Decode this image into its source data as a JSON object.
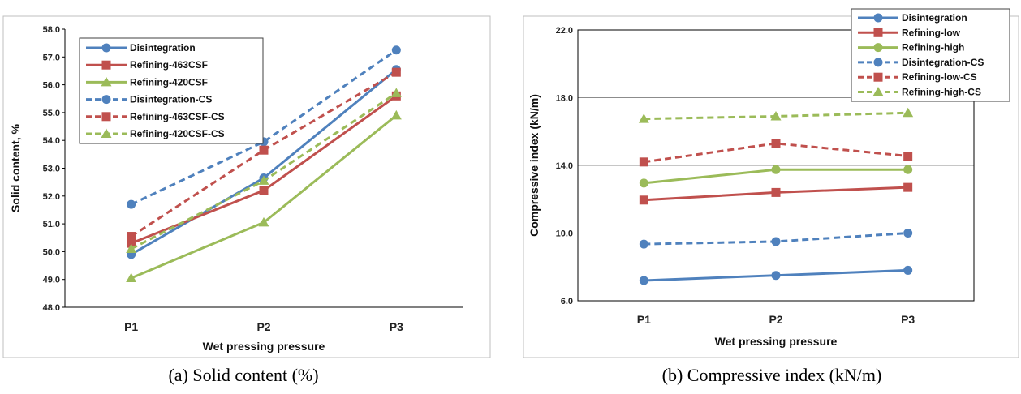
{
  "chart_data": [
    {
      "type": "line",
      "title": "",
      "caption": "(a) Solid content (%)",
      "xlabel": "Wet pressing pressure",
      "ylabel": "Solid content, %",
      "categories": [
        "P1",
        "P2",
        "P3"
      ],
      "ylim": [
        48.0,
        58.0
      ],
      "yticks": [
        "48.0",
        "49.0",
        "50.0",
        "51.0",
        "52.0",
        "53.0",
        "54.0",
        "55.0",
        "56.0",
        "57.0",
        "58.0"
      ],
      "grid": false,
      "legend_position": "top-left",
      "series": [
        {
          "name": "Disintegration",
          "values": [
            49.9,
            52.65,
            56.55
          ],
          "color": "#4f81bd",
          "dash": false,
          "marker": "circle"
        },
        {
          "name": "Refining-463CSF",
          "values": [
            50.3,
            52.2,
            55.6
          ],
          "color": "#c0504d",
          "dash": false,
          "marker": "square"
        },
        {
          "name": "Refining-420CSF",
          "values": [
            49.05,
            51.05,
            54.9
          ],
          "color": "#9bbb59",
          "dash": false,
          "marker": "triangle"
        },
        {
          "name": "Disintegration-CS",
          "values": [
            51.7,
            53.95,
            57.25
          ],
          "color": "#4f81bd",
          "dash": true,
          "marker": "circle"
        },
        {
          "name": "Refining-463CSF-CS",
          "values": [
            50.55,
            53.65,
            56.45
          ],
          "color": "#c0504d",
          "dash": true,
          "marker": "square"
        },
        {
          "name": "Refining-420CSF-CS",
          "values": [
            50.1,
            52.55,
            55.7
          ],
          "color": "#9bbb59",
          "dash": true,
          "marker": "triangle"
        }
      ]
    },
    {
      "type": "line",
      "title": "",
      "caption": "(b) Compressive index (kN/m)",
      "xlabel": "Wet pressing pressure",
      "ylabel": "Compressive index (kN/m)",
      "categories": [
        "P1",
        "P2",
        "P3"
      ],
      "ylim": [
        6.0,
        22.0
      ],
      "yticks": [
        "6.0",
        "10.0",
        "14.0",
        "18.0",
        "22.0"
      ],
      "grid": true,
      "legend_position": "top-right",
      "series": [
        {
          "name": "Disintegration",
          "values": [
            7.2,
            7.5,
            7.8
          ],
          "color": "#4f81bd",
          "dash": false,
          "marker": "circle"
        },
        {
          "name": "Refining-low",
          "values": [
            11.95,
            12.4,
            12.7
          ],
          "color": "#c0504d",
          "dash": false,
          "marker": "square"
        },
        {
          "name": "Refining-high",
          "values": [
            12.95,
            13.75,
            13.75
          ],
          "color": "#9bbb59",
          "dash": false,
          "marker": "circle"
        },
        {
          "name": "Disintegration-CS",
          "values": [
            9.35,
            9.5,
            10.0
          ],
          "color": "#4f81bd",
          "dash": true,
          "marker": "circle"
        },
        {
          "name": "Refining-low-CS",
          "values": [
            14.2,
            15.3,
            14.55
          ],
          "color": "#c0504d",
          "dash": true,
          "marker": "square"
        },
        {
          "name": "Refining-high-CS",
          "values": [
            16.75,
            16.9,
            17.1
          ],
          "color": "#9bbb59",
          "dash": true,
          "marker": "triangle"
        }
      ]
    }
  ]
}
